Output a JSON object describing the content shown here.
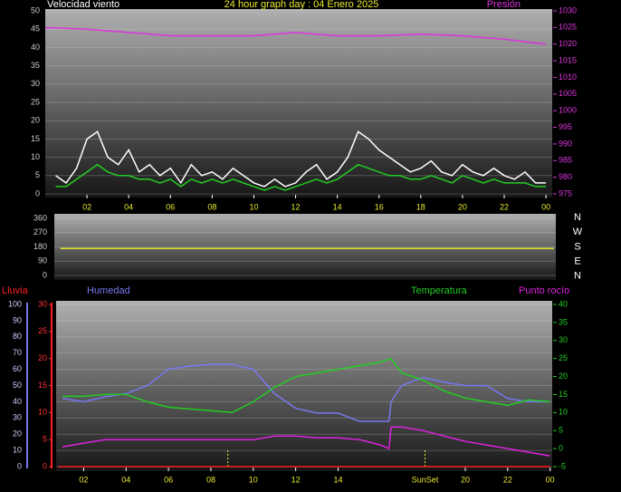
{
  "chart_data": [
    {
      "type": "line",
      "title": "24 hour graph day : 04 Enero 2025",
      "xlim": [
        0,
        24.3
      ],
      "xticks": [
        {
          "value": 2,
          "label": "02"
        },
        {
          "value": 4,
          "label": "04"
        },
        {
          "value": 6,
          "label": "06"
        },
        {
          "value": 8,
          "label": "08"
        },
        10,
        12,
        14,
        16,
        18,
        20,
        22,
        {
          "value": 24,
          "label": "00"
        }
      ],
      "ylim": [
        0,
        50
      ],
      "yticks": [
        0,
        5,
        10,
        15,
        20,
        25,
        30,
        35,
        40,
        45,
        50
      ],
      "y2lim": [
        975,
        1030
      ],
      "y2ticks": [
        975,
        980,
        985,
        990,
        995,
        1000,
        1005,
        1010,
        1015,
        1020,
        1025,
        1030
      ],
      "grid": true,
      "series": [
        {
          "name": "Velocidad viento",
          "color": "#ffffff",
          "x": [
            0.5,
            1,
            1.5,
            2,
            2.5,
            3,
            3.5,
            4,
            4.5,
            5,
            5.5,
            6,
            6.5,
            7,
            7.5,
            8,
            8.5,
            9,
            9.5,
            10,
            10.5,
            11,
            11.5,
            12,
            12.5,
            13,
            13.5,
            14,
            14.5,
            15,
            15.5,
            16,
            16.5,
            17,
            17.5,
            18,
            18.5,
            19,
            19.5,
            20,
            20.5,
            21,
            21.5,
            22,
            22.5,
            23,
            23.5,
            24
          ],
          "values": [
            5,
            3,
            7,
            15,
            17,
            10,
            8,
            12,
            6,
            8,
            5,
            7,
            3,
            8,
            5,
            6,
            4,
            7,
            5,
            3,
            2,
            4,
            2,
            3,
            6,
            8,
            4,
            6,
            10,
            17,
            15,
            12,
            10,
            8,
            6,
            7,
            9,
            6,
            5,
            8,
            6,
            5,
            7,
            5,
            4,
            6,
            3,
            3
          ]
        },
        {
          "color": "#22cc22",
          "x": [
            0.5,
            1,
            1.5,
            2,
            2.5,
            3,
            3.5,
            4,
            4.5,
            5,
            5.5,
            6,
            6.5,
            7,
            7.5,
            8,
            8.5,
            9,
            9.5,
            10,
            10.5,
            11,
            11.5,
            12,
            12.5,
            13,
            13.5,
            14,
            14.5,
            15,
            15.5,
            16,
            16.5,
            17,
            17.5,
            18,
            18.5,
            19,
            19.5,
            20,
            20.5,
            21,
            21.5,
            22,
            22.5,
            23,
            23.5,
            24
          ],
          "values": [
            2,
            2,
            4,
            6,
            8,
            6,
            5,
            5,
            4,
            4,
            3,
            4,
            2,
            4,
            3,
            4,
            3,
            4,
            3,
            2,
            1,
            2,
            1,
            2,
            3,
            4,
            3,
            4,
            6,
            8,
            7,
            6,
            5,
            5,
            4,
            4,
            5,
            4,
            3,
            5,
            4,
            3,
            4,
            3,
            3,
            3,
            2,
            2
          ]
        },
        {
          "name": "Presión",
          "color": "#dd33dd",
          "axis": "y2",
          "x": [
            0,
            2,
            4,
            6,
            8,
            10,
            11,
            12,
            13,
            14,
            16,
            18,
            20,
            22,
            24
          ],
          "values": [
            1025,
            1024.5,
            1023.5,
            1022.5,
            1022.5,
            1022.5,
            1023,
            1023.5,
            1023,
            1022.5,
            1022.5,
            1023,
            1022.5,
            1021.5,
            1020
          ]
        }
      ]
    },
    {
      "type": "line",
      "xlim": [
        0,
        24.3
      ],
      "ylim": [
        0,
        360
      ],
      "yticks": [
        0,
        90,
        180,
        270,
        360
      ],
      "compass": [
        "N",
        "W",
        "S",
        "E",
        "N"
      ],
      "grid": true,
      "series": [
        {
          "color": "#e8e830",
          "x": [
            0.3,
            24.2
          ],
          "values": [
            170,
            170
          ]
        }
      ]
    },
    {
      "type": "line",
      "xlim": [
        0.7,
        24.1
      ],
      "xticks": [
        {
          "value": 2,
          "label": "02"
        },
        {
          "value": 4,
          "label": "04"
        },
        {
          "value": 6,
          "label": "06"
        },
        {
          "value": 8,
          "label": "08"
        },
        10,
        12,
        14,
        20,
        22,
        {
          "value": 24,
          "label": "00"
        }
      ],
      "ylim": [
        0,
        100
      ],
      "yticks": [
        0,
        10,
        20,
        30,
        40,
        50,
        60,
        70,
        80,
        90,
        100
      ],
      "y3lim": [
        0,
        30
      ],
      "y3ticks": [
        0,
        5,
        10,
        15,
        20,
        25,
        30
      ],
      "y2lim": [
        -5,
        40
      ],
      "y2ticks": [
        -5,
        0,
        5,
        10,
        15,
        20,
        25,
        30,
        35,
        40
      ],
      "sunrise": 8.8,
      "sunset": 18.1,
      "sun_label": "SunSet",
      "grid": true,
      "series": [
        {
          "name": "Lluvia",
          "color": "#ff2020",
          "axis": "y3",
          "x": [
            0.8,
            24
          ],
          "values": [
            0,
            0
          ]
        },
        {
          "name": "Humedad",
          "color": "#7777ee",
          "x": [
            1,
            2,
            3,
            4,
            5,
            6,
            7,
            8,
            9,
            10,
            11,
            12,
            13,
            14,
            15,
            16,
            16.4,
            16.5,
            17,
            18,
            19,
            20,
            21,
            22,
            23,
            24
          ],
          "values": [
            42,
            40,
            43,
            45,
            50,
            60,
            62,
            63,
            63,
            60,
            45,
            36,
            33,
            33,
            28,
            28,
            28,
            40,
            50,
            55,
            52,
            50,
            50,
            42,
            40,
            40
          ]
        },
        {
          "name": "Temperatura",
          "color": "#22cc22",
          "axis": "y2",
          "x": [
            1,
            2,
            3,
            4,
            5,
            6,
            7,
            8,
            9,
            10,
            11,
            12,
            13,
            14,
            15,
            16,
            16.5,
            17,
            18,
            19,
            20,
            21,
            22,
            23,
            24
          ],
          "values": [
            14.5,
            14.5,
            15,
            15,
            13,
            11.5,
            11,
            10.5,
            10,
            13,
            17,
            20,
            21,
            22,
            23,
            24,
            25,
            21,
            19,
            16,
            14,
            13,
            12,
            13.5,
            13
          ]
        },
        {
          "name": "Punto rocío",
          "color": "#dd22dd",
          "axis": "y2",
          "x": [
            1,
            2,
            3,
            4,
            5,
            6,
            7,
            8,
            9,
            10,
            11,
            12,
            13,
            14,
            15,
            16,
            16.4,
            16.5,
            17,
            18,
            19,
            20,
            21,
            22,
            23,
            24
          ],
          "values": [
            0.5,
            1.5,
            2.5,
            2.5,
            2.5,
            2.5,
            2.5,
            2.5,
            2.5,
            2.5,
            3.5,
            3.5,
            3,
            3,
            2.5,
            1,
            0,
            6,
            6,
            5,
            3.5,
            2,
            1,
            0,
            -1,
            -2
          ]
        }
      ]
    }
  ]
}
